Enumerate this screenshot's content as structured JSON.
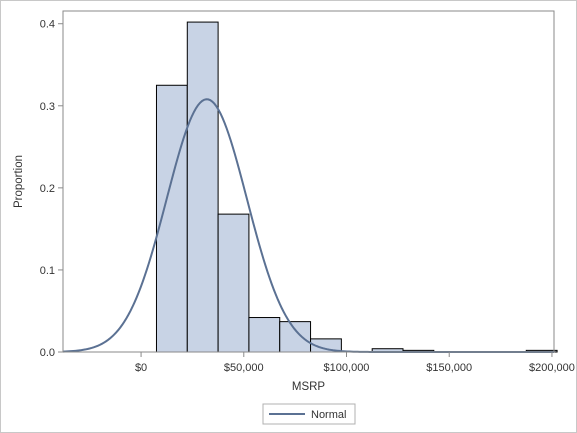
{
  "chart_data": {
    "type": "bar",
    "subtype": "histogram",
    "xlabel": "MSRP",
    "ylabel": "Proportion",
    "xlim": [
      -38000,
      201000
    ],
    "ylim": [
      0,
      0.4
    ],
    "x_ticks": [
      {
        "value": 0,
        "label": "$0"
      },
      {
        "value": 50000,
        "label": "$50,000"
      },
      {
        "value": 100000,
        "label": "$100,000"
      },
      {
        "value": 150000,
        "label": "$150,000"
      },
      {
        "value": 200000,
        "label": "$200,000"
      }
    ],
    "y_ticks": [
      {
        "value": 0,
        "label": "0.0"
      },
      {
        "value": 0.1,
        "label": "0.1"
      },
      {
        "value": 0.2,
        "label": "0.2"
      },
      {
        "value": 0.3,
        "label": "0.3"
      },
      {
        "value": 0.4,
        "label": "0.4"
      }
    ],
    "bins": [
      {
        "x0": 7500,
        "x1": 22500,
        "value": 0.325
      },
      {
        "x0": 22500,
        "x1": 37500,
        "value": 0.402
      },
      {
        "x0": 37500,
        "x1": 52500,
        "value": 0.168
      },
      {
        "x0": 52500,
        "x1": 67500,
        "value": 0.042
      },
      {
        "x0": 67500,
        "x1": 82500,
        "value": 0.037
      },
      {
        "x0": 82500,
        "x1": 97500,
        "value": 0.016
      },
      {
        "x0": 97500,
        "x1": 112500,
        "value": 0.0
      },
      {
        "x0": 112500,
        "x1": 127500,
        "value": 0.004
      },
      {
        "x0": 127500,
        "x1": 142500,
        "value": 0.002
      },
      {
        "x0": 142500,
        "x1": 157500,
        "value": 0.0
      },
      {
        "x0": 157500,
        "x1": 172500,
        "value": 0.0
      },
      {
        "x0": 172500,
        "x1": 187500,
        "value": 0.0
      },
      {
        "x0": 187500,
        "x1": 202500,
        "value": 0.002
      }
    ],
    "normal_curve": {
      "name": "Normal",
      "mean": 32000,
      "std": 19500,
      "peak": 0.308
    },
    "legend": {
      "placement": "bottom-center",
      "entries": [
        {
          "label": "Normal"
        }
      ]
    },
    "grid": false,
    "colors": {
      "bar_fill": "#c8d3e5",
      "bar_edge": "#000000",
      "curve": "#5b7193",
      "axis": "#8a8a8a",
      "text": "#333333",
      "frame": "#c8c8c8"
    }
  }
}
